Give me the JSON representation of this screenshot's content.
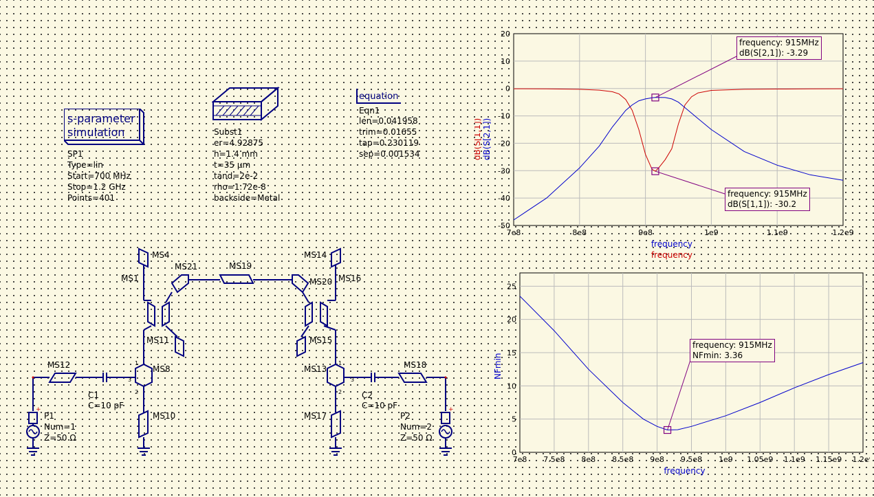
{
  "sim_block": {
    "title_line1": "s-parameter",
    "title_line2": "simulation",
    "name": "SP1",
    "params": [
      "Type=lin",
      "Start=700 MHz",
      "Stop=1.2 GHz",
      "Points=401"
    ]
  },
  "substrate": {
    "name": "Subst1",
    "params": [
      "er=4.92875",
      "h=1.4 mm",
      "t=35 µm",
      "tand=2e-2",
      "rho=1.72e-8",
      "backside=Metal"
    ]
  },
  "equation": {
    "title": "equation",
    "name": "Eqn1",
    "params": [
      "len=0.041958",
      "trim=0.01655",
      "tap=0.230119",
      "sep=0.001534"
    ]
  },
  "components": {
    "ms4": "MS4",
    "ms21": "MS21",
    "ms19": "MS19",
    "ms14": "MS14",
    "ms1": "MS1",
    "ms20": "MS20",
    "ms16": "MS16",
    "ms11": "MS11",
    "ms15": "MS15",
    "ms12": "MS12",
    "ms8": "MS8",
    "ms13": "MS13",
    "ms18": "MS18",
    "ms10": "MS10",
    "ms17": "MS17",
    "c1": "C1",
    "c1_val": "C=10 pF",
    "c2": "C2",
    "c2_val": "C=10 pF",
    "p1_name": "P1",
    "p1_num": "Num=1",
    "p1_z": "Z=50 Ω",
    "p2_name": "P2",
    "p2_num": "Num=2",
    "p2_z": "Z=50 Ω",
    "pin1": "1",
    "pin2": "2",
    "pin3": "3"
  },
  "chart_data": [
    {
      "type": "line",
      "xlabel": "frequency",
      "ylabels": [
        "dB(S[1,1])",
        "dB(S[2,1])"
      ],
      "x_label_lines": [
        "frequency",
        "frequency"
      ],
      "xlim": [
        700000000,
        1200000000
      ],
      "ylim": [
        -50,
        20
      ],
      "x_ticks": [
        "7e8",
        "8e8",
        "9e8",
        "1e9",
        "1.1e9",
        "1.2e9"
      ],
      "x_tick_values": [
        700000000,
        800000000,
        900000000,
        1000000000,
        1100000000,
        1200000000
      ],
      "y_ticks": [
        "20",
        "10",
        "0",
        "-10",
        "-20",
        "-30",
        "-40",
        "-50"
      ],
      "y_tick_values": [
        20,
        10,
        0,
        -10,
        -20,
        -30,
        -40,
        -50
      ],
      "grid": true,
      "colors": {
        "s11": "#cc0000",
        "s21": "#0000cc",
        "marker": "#800080"
      },
      "series": [
        {
          "name": "dB(S[1,1])",
          "x": [
            700000000,
            750000000,
            800000000,
            830000000,
            850000000,
            860000000,
            870000000,
            880000000,
            890000000,
            900000000,
            910000000,
            915000000,
            920000000,
            930000000,
            940000000,
            950000000,
            960000000,
            970000000,
            980000000,
            1000000000,
            1050000000,
            1100000000,
            1150000000,
            1200000000
          ],
          "y": [
            -0.1,
            -0.15,
            -0.3,
            -0.6,
            -1.2,
            -2,
            -4,
            -8,
            -15,
            -24,
            -29.5,
            -30.2,
            -29,
            -26,
            -22,
            -13,
            -6,
            -3,
            -1.6,
            -0.7,
            -0.3,
            -0.2,
            -0.15,
            -0.1
          ]
        },
        {
          "name": "dB(S[2,1])",
          "x": [
            700000000,
            750000000,
            800000000,
            830000000,
            850000000,
            860000000,
            870000000,
            880000000,
            890000000,
            900000000,
            910000000,
            915000000,
            920000000,
            930000000,
            940000000,
            950000000,
            960000000,
            970000000,
            980000000,
            1000000000,
            1050000000,
            1100000000,
            1150000000,
            1200000000
          ],
          "y": [
            -48,
            -40,
            -29,
            -21,
            -14,
            -11,
            -8,
            -6,
            -4.5,
            -3.8,
            -3.4,
            -3.29,
            -3.25,
            -3.3,
            -3.8,
            -5,
            -7,
            -9,
            -11,
            -15,
            -23,
            -28,
            -31.5,
            -33.5
          ]
        }
      ],
      "markers": [
        {
          "x": 915000000,
          "y": -3.29,
          "line1": "frequency: 915MHz",
          "line2": "dB(S[2,1]): -3.29"
        },
        {
          "x": 915000000,
          "y": -30.2,
          "line1": "frequency: 915MHz",
          "line2": "dB(S[1,1]): -30.2"
        }
      ]
    },
    {
      "type": "line",
      "xlabel": "frequency",
      "ylabel": "NFmin",
      "xlim": [
        700000000,
        1200000000
      ],
      "ylim": [
        0,
        27
      ],
      "x_ticks": [
        "7e8",
        "7.5e8",
        "8e8",
        "8.5e8",
        "9e8",
        "9.5e8",
        "1e9",
        "1.05e9",
        "1.1e9",
        "1.15e9",
        "1.2e9"
      ],
      "x_tick_values": [
        700000000,
        750000000,
        800000000,
        850000000,
        900000000,
        950000000,
        1000000000,
        1050000000,
        1100000000,
        1150000000,
        1200000000
      ],
      "y_ticks": [
        "25",
        "20",
        "15",
        "10",
        "5",
        "0"
      ],
      "y_tick_values": [
        25,
        20,
        15,
        10,
        5,
        0
      ],
      "grid": true,
      "colors": {
        "nf": "#0000cc",
        "marker": "#800080"
      },
      "series": [
        {
          "name": "NFmin",
          "x": [
            700000000,
            750000000,
            800000000,
            850000000,
            880000000,
            900000000,
            915000000,
            930000000,
            950000000,
            1000000000,
            1050000000,
            1100000000,
            1150000000,
            1200000000
          ],
          "y": [
            23.5,
            18.3,
            12.5,
            7.5,
            5,
            3.9,
            3.36,
            3.4,
            3.9,
            5.5,
            7.5,
            9.7,
            11.7,
            13.5
          ]
        }
      ],
      "markers": [
        {
          "x": 915000000,
          "y": 3.36,
          "line1": "frequency: 915MHz",
          "line2": "NFmin: 3.36"
        }
      ]
    }
  ]
}
